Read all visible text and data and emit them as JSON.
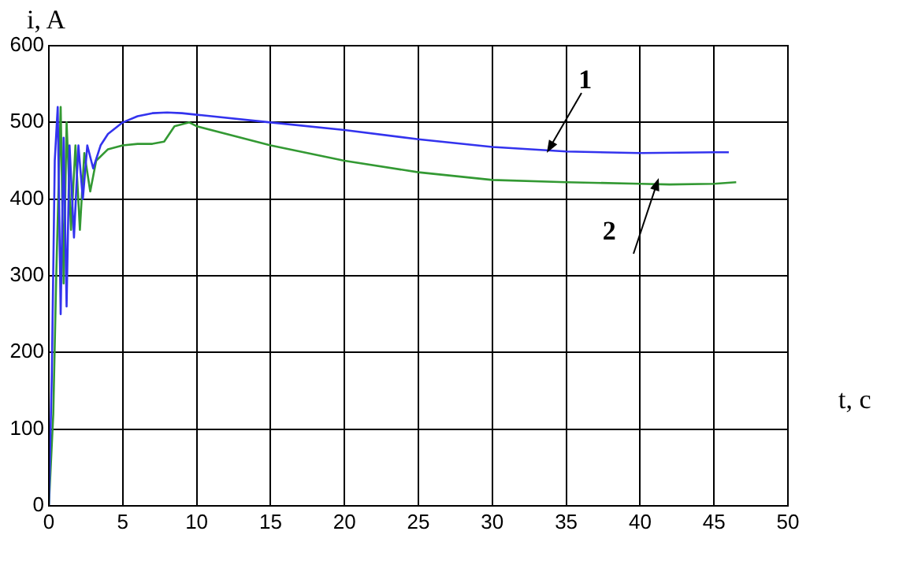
{
  "chart_data": {
    "type": "line",
    "xlabel": "t, c",
    "ylabel": "i, A",
    "xlim": [
      0,
      50
    ],
    "xticks": [
      0,
      5,
      10,
      15,
      20,
      25,
      30,
      35,
      40,
      45,
      50
    ],
    "ylim": [
      0,
      600
    ],
    "yticks": [
      0,
      100,
      200,
      300,
      400,
      500,
      600
    ],
    "grid": true,
    "legend": false,
    "marker": "none",
    "line_style": "solid",
    "series": [
      {
        "color": "#3333ee",
        "x": [
          0,
          0.2,
          0.4,
          0.6,
          0.8,
          1.0,
          1.2,
          1.4,
          1.7,
          2.0,
          2.3,
          2.6,
          3,
          3.5,
          4,
          5,
          6,
          7,
          8,
          9,
          10,
          15,
          20,
          25,
          30,
          35,
          40,
          45,
          46
        ],
        "values": [
          0,
          170,
          450,
          520,
          250,
          480,
          260,
          470,
          350,
          470,
          400,
          470,
          440,
          470,
          485,
          500,
          508,
          512,
          513,
          512,
          510,
          500,
          490,
          478,
          468,
          462,
          460,
          461,
          461
        ]
      },
      {
        "color": "#339933",
        "x": [
          0,
          0.3,
          0.5,
          0.8,
          1.0,
          1.2,
          1.5,
          1.8,
          2.1,
          2.4,
          2.8,
          3.2,
          4,
          5,
          6,
          7,
          7.8,
          8.5,
          9.5,
          10,
          15,
          20,
          25,
          30,
          35,
          40,
          42,
          45,
          46.5
        ],
        "values": [
          0,
          120,
          300,
          520,
          290,
          500,
          360,
          470,
          360,
          460,
          410,
          450,
          465,
          470,
          472,
          472,
          475,
          495,
          500,
          495,
          470,
          450,
          435,
          425,
          422,
          420,
          419,
          420,
          422
        ]
      }
    ],
    "annotations": [
      {
        "text": "1",
        "x": 33.7,
        "y": 460
      },
      {
        "text": "2",
        "x": 41.3,
        "y": 427
      }
    ]
  }
}
